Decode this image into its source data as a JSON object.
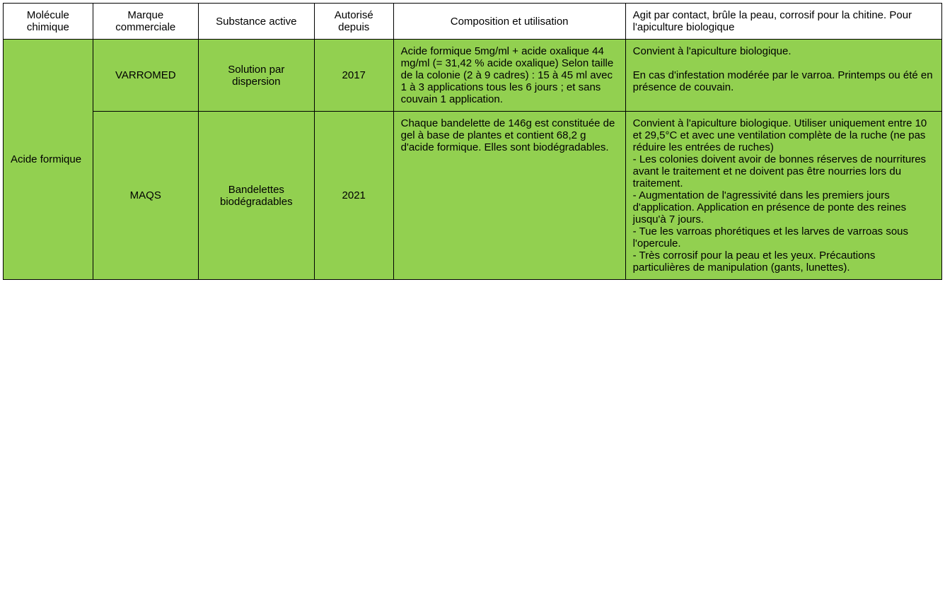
{
  "table": {
    "background_color": "#ffffff",
    "data_bg_color": "#92d050",
    "border_color": "#000000",
    "font_size": 15,
    "header": {
      "molecule": "Molécule chimique",
      "marque": "Marque commerciale",
      "substance": "Substance active",
      "autorise": "Autorisé depuis",
      "composition": "Composition et utilisation",
      "observations": "Agit par contact, brûle la peau, corrosif pour la chitine. Pour l'apiculture biologique"
    },
    "molecule_label": "Acide formique",
    "rows": [
      {
        "marque": "VARROMED",
        "substance": "Solution par dispersion",
        "autorise": "2017",
        "composition": "Acide formique 5mg/ml + acide oxalique 44 mg/ml (= 31,42 % acide oxalique) Selon taille de la colonie (2 à 9 cadres) : 15 à 45 ml avec 1 à 3 applications tous les 6 jours ; et sans couvain 1 application.",
        "observations": "Convient à l'apiculture biologique.\n\nEn cas d'infestation modérée par le varroa. Printemps ou été en présence de couvain."
      },
      {
        "marque": "MAQS",
        "substance": "Bandelettes biodégradables",
        "autorise": "2021",
        "composition": "Chaque bandelette de 146g est constituée de gel à base de plantes et contient 68,2 g d'acide formique. Elles sont biodégradables.",
        "observations": "Convient à l'apiculture biologique. Utiliser uniquement entre 10 et 29,5°C et avec une ventilation complète de la ruche (ne pas réduire les entrées de ruches)\n- Les colonies doivent avoir de bonnes réserves de nourritures avant le traitement et ne doivent pas être nourries lors du traitement.\n- Augmentation de l'agressivité dans les premiers jours d'application. Application en présence de ponte des reines jusqu'à 7 jours.\n- Tue les varroas phorétiques et les larves de varroas sous l'opercule.\n- Très corrosif pour la peau et les yeux. Précautions particulières de manipulation (gants, lunettes)."
      }
    ]
  }
}
